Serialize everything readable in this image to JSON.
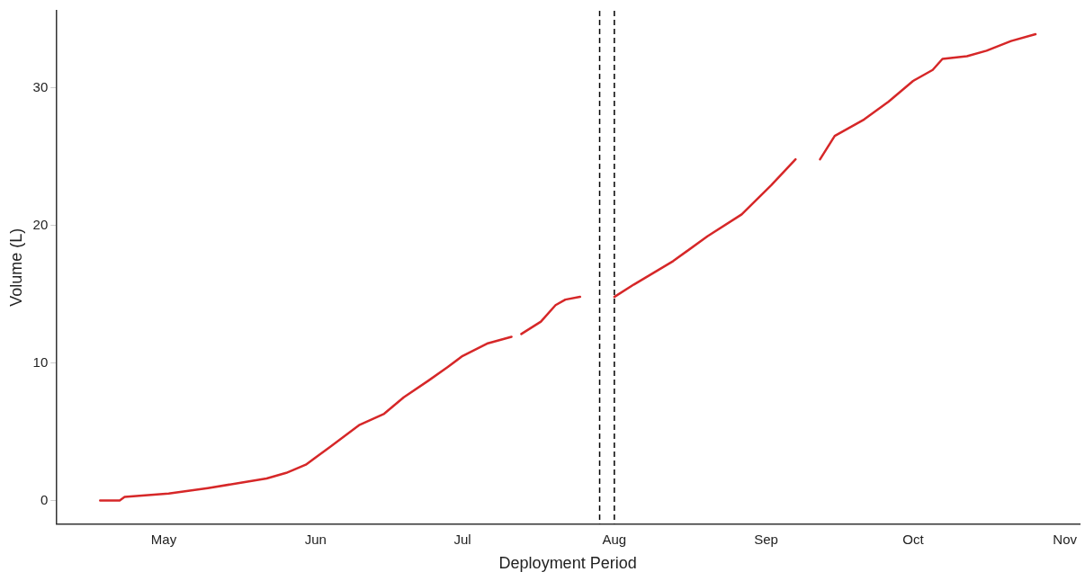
{
  "chart_data": {
    "type": "line",
    "xlabel": "Deployment Period",
    "ylabel": "Volume (L)",
    "xlim": [
      "--04-09",
      "--11-04"
    ],
    "ylim": [
      -1.7,
      35.6
    ],
    "yticks": [
      0,
      10,
      20,
      30
    ],
    "xticks": [
      {
        "value": "--05-01",
        "label": "May"
      },
      {
        "value": "--06-01",
        "label": "Jun"
      },
      {
        "value": "--07-01",
        "label": "Jul"
      },
      {
        "value": "--08-01",
        "label": "Aug"
      },
      {
        "value": "--09-01",
        "label": "Sep"
      },
      {
        "value": "--10-01",
        "label": "Oct"
      },
      {
        "value": "--11-01",
        "label": "Nov"
      }
    ],
    "grid": false,
    "legend": false,
    "marker": "none",
    "line_style": "solid",
    "series": [
      {
        "color": "#d62728",
        "x": [
          "--04-18",
          "--04-22",
          "--04-23",
          "--05-02",
          "--05-10",
          "--05-17",
          "--05-22",
          "--05-26",
          "--05-30",
          "--06-04",
          "--06-10",
          "--06-15",
          "--06-19",
          "--06-24",
          "--06-28",
          "--07-01",
          "--07-06",
          "--07-11",
          "--07-12",
          "--07-13",
          "--07-17",
          "--07-20",
          "--07-22",
          "--07-25",
          "--07-28",
          "--08-01",
          "--08-05",
          "--08-13",
          "--08-20",
          "--08-27",
          "--09-02",
          "--09-07",
          "--09-09",
          "--09-12",
          "--09-15",
          "--09-21",
          "--09-26",
          "--10-01",
          "--10-05",
          "--10-07",
          "--10-12",
          "--10-16",
          "--10-21",
          "--10-26"
        ],
        "values": [
          0,
          0,
          0.25,
          0.5,
          0.9,
          1.3,
          1.6,
          2.0,
          2.6,
          3.9,
          5.5,
          6.3,
          7.5,
          8.7,
          9.7,
          10.5,
          11.4,
          11.9,
          null,
          12.1,
          13.0,
          14.2,
          14.6,
          14.8,
          null,
          14.8,
          15.7,
          17.4,
          19.2,
          20.8,
          22.9,
          24.8,
          null,
          24.8,
          26.5,
          27.7,
          29.0,
          30.5,
          31.3,
          32.1,
          32.3,
          32.7,
          33.4,
          33.9
        ]
      }
    ],
    "ref_lines": [
      {
        "axis": "x",
        "value": "--07-29",
        "color": "#000000",
        "line_style": "dashed"
      },
      {
        "axis": "x",
        "value": "--08-01",
        "color": "#000000",
        "line_style": "dashed"
      }
    ]
  }
}
